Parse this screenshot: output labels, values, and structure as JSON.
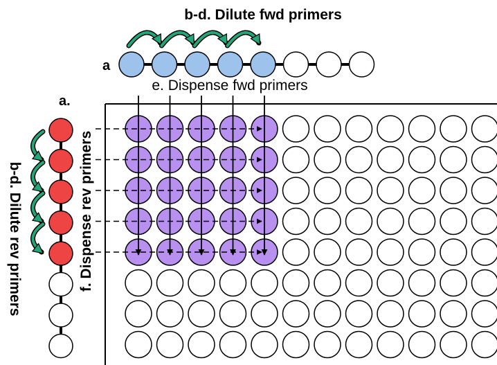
{
  "labels": {
    "top_title": "b-d.  Dilute fwd primers",
    "row_a": "a",
    "col_a": "a.",
    "dispense_fwd": "e. Dispense fwd primers",
    "dispense_rev": "f. Dispense rev primers",
    "dilute_rev": "b-d.  Dilute rev primers"
  },
  "colors": {
    "fwd_fill": "#9dc3ec",
    "rev_fill": "#ee4444",
    "plate_fill": "#b890f0",
    "empty_fill": "#ffffff",
    "arrow_fill": "#22a77a",
    "outline": "#000000"
  },
  "fwd_strip": {
    "count": 8,
    "filled": 5
  },
  "rev_strip": {
    "count": 8,
    "filled": 5
  },
  "plate": {
    "rows": 8,
    "cols": 12,
    "filled_rows": 5,
    "filled_cols": 5
  }
}
